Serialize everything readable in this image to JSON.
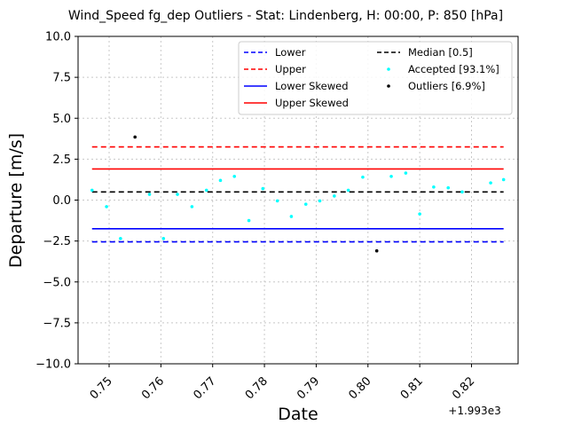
{
  "chart_data": {
    "type": "scatter",
    "title": "Wind_Speed fg_dep Outliers - Stat: Lindenberg, H: 00:00, P: 850 [hPa]",
    "xlabel": "Date",
    "ylabel": "Departure [m/s]",
    "x_offset_label": "+1.993e3",
    "xlim": [
      0.744,
      0.829
    ],
    "ylim": [
      -10.0,
      10.0
    ],
    "grid": true,
    "legend_position": "top-right",
    "x_ticks": [
      0.75,
      0.76,
      0.77,
      0.78,
      0.79,
      0.8,
      0.81,
      0.82
    ],
    "x_tick_labels": [
      "0.75",
      "0.76",
      "0.77",
      "0.78",
      "0.79",
      "0.80",
      "0.81",
      "0.82"
    ],
    "y_ticks": [
      10.0,
      7.5,
      5.0,
      2.5,
      0.0,
      -2.5,
      -5.0,
      -7.5,
      -10.0
    ],
    "y_tick_labels": [
      "10.0",
      "7.5",
      "5.0",
      "2.5",
      "0.0",
      "−2.5",
      "−5.0",
      "−7.5",
      "−10.0"
    ],
    "lines": [
      {
        "name": "Lower",
        "y": -2.55,
        "x": [
          0.7467,
          0.8262
        ],
        "color": "#0000ff",
        "dashed": true
      },
      {
        "name": "Upper",
        "y": 3.25,
        "x": [
          0.7467,
          0.8262
        ],
        "color": "#ff0000",
        "dashed": true
      },
      {
        "name": "Lower Skewed",
        "y": -1.75,
        "x": [
          0.7467,
          0.8262
        ],
        "color": "#0000ff",
        "dashed": false
      },
      {
        "name": "Upper Skewed",
        "y": 1.9,
        "x": [
          0.7467,
          0.8262
        ],
        "color": "#ff0000",
        "dashed": false
      },
      {
        "name": "Median [0.5]",
        "y": 0.5,
        "x": [
          0.7467,
          0.8262
        ],
        "color": "#000000",
        "dashed": true
      }
    ],
    "series": [
      {
        "name": "Accepted [93.1%]",
        "color": "#00ffff",
        "points": [
          [
            0.7467,
            0.6
          ],
          [
            0.7495,
            -0.4
          ],
          [
            0.7522,
            -2.35
          ],
          [
            0.7578,
            0.35
          ],
          [
            0.7605,
            -2.35
          ],
          [
            0.7632,
            0.35
          ],
          [
            0.766,
            -0.4
          ],
          [
            0.7688,
            0.6
          ],
          [
            0.7715,
            1.2
          ],
          [
            0.7742,
            1.45
          ],
          [
            0.777,
            -1.25
          ],
          [
            0.7797,
            0.7
          ],
          [
            0.7825,
            -0.05
          ],
          [
            0.7852,
            -1.0
          ],
          [
            0.788,
            -0.25
          ],
          [
            0.7907,
            -0.05
          ],
          [
            0.7935,
            0.25
          ],
          [
            0.7962,
            0.6
          ],
          [
            0.799,
            1.4
          ],
          [
            0.8045,
            1.45
          ],
          [
            0.8073,
            1.65
          ],
          [
            0.81,
            -0.85
          ],
          [
            0.8127,
            0.8
          ],
          [
            0.8155,
            0.75
          ],
          [
            0.8182,
            0.5
          ],
          [
            0.8237,
            1.05
          ],
          [
            0.8262,
            1.25
          ]
        ]
      },
      {
        "name": "Outliers [6.9%]",
        "color": "#000000",
        "points": [
          [
            0.755,
            3.85
          ],
          [
            0.8017,
            -3.1
          ]
        ]
      }
    ]
  }
}
